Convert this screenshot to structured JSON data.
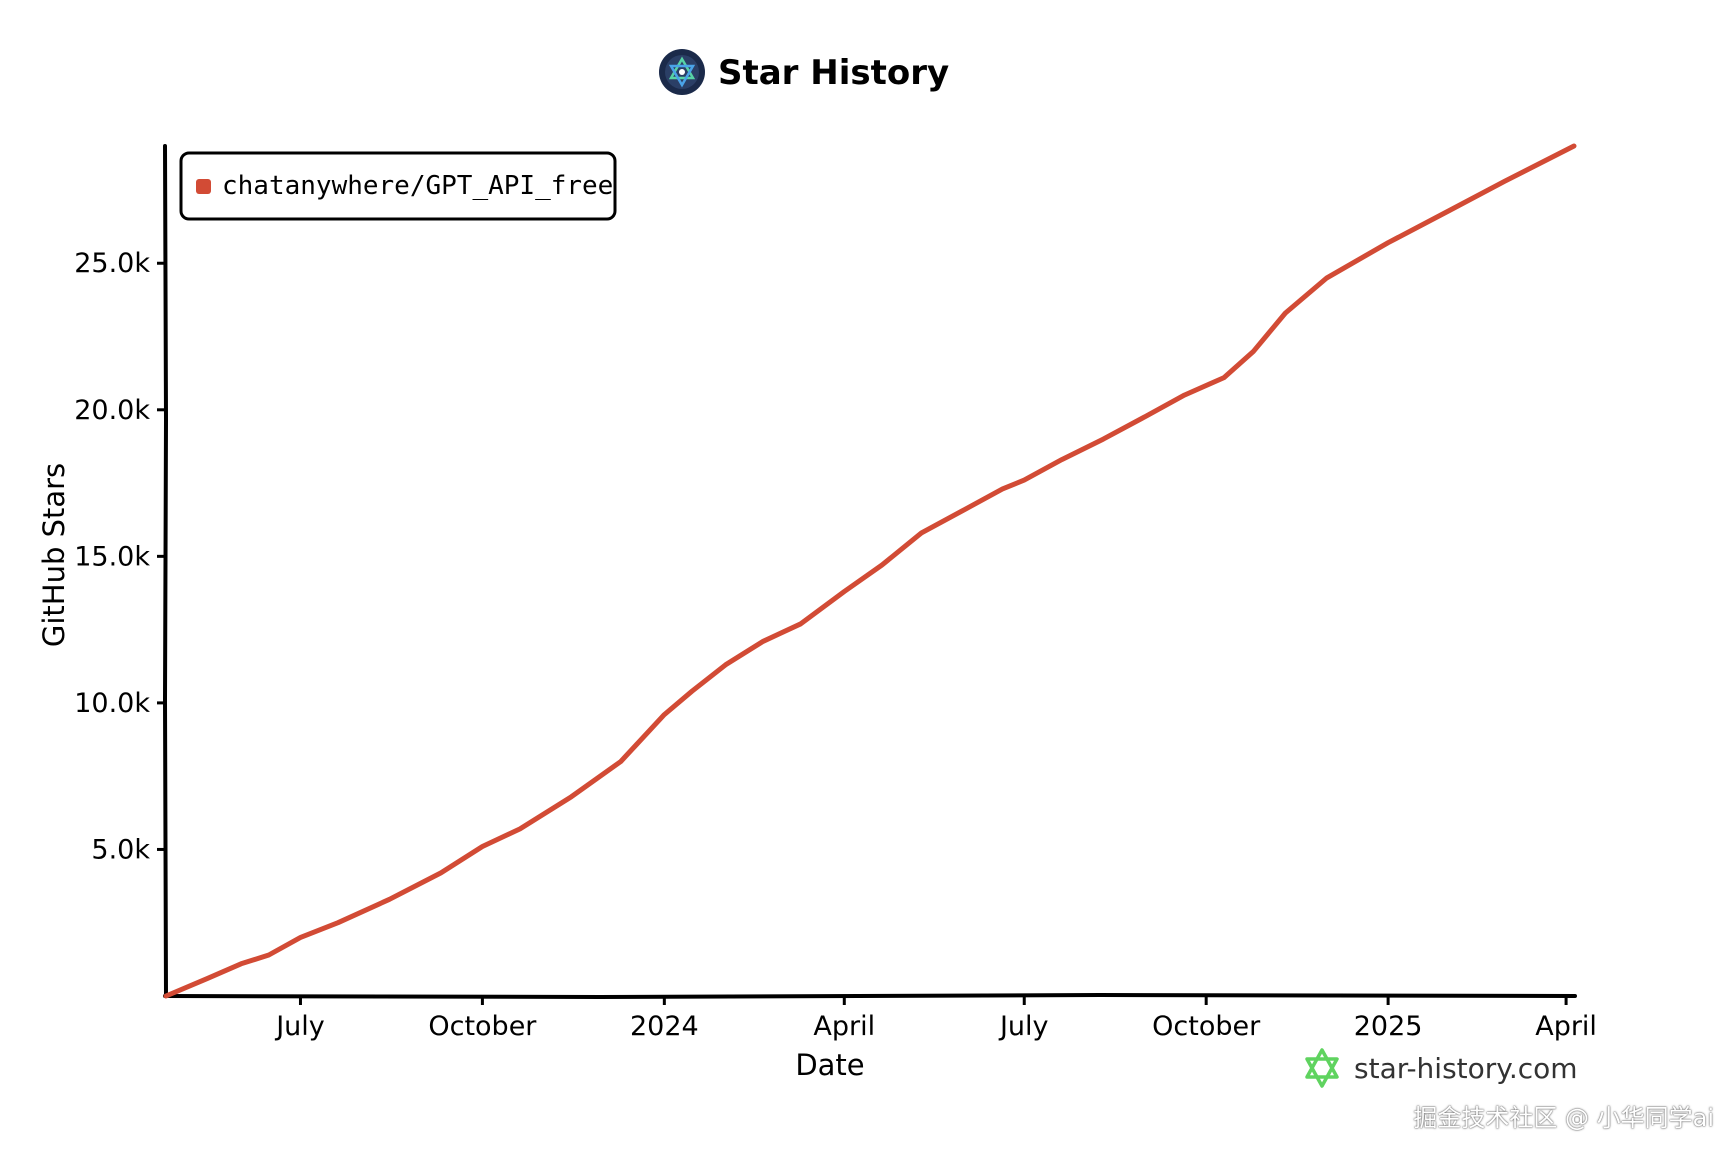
{
  "colors": {
    "series": "#d24b35",
    "axis": "#000000",
    "brand_star": "#5fd35f",
    "logo_bg": "#1b2a4a"
  },
  "icons": {
    "title_logo": "star-history-logo-icon",
    "brand_logo": "star-history-star-icon"
  },
  "chart_data": {
    "type": "line",
    "title": "Star History",
    "xlabel": "Date",
    "ylabel": "GitHub Stars",
    "x_ticks": [
      {
        "label": "July",
        "date": "2023-07-01"
      },
      {
        "label": "October",
        "date": "2023-10-01"
      },
      {
        "label": "2024",
        "date": "2024-01-01"
      },
      {
        "label": "April",
        "date": "2024-04-01"
      },
      {
        "label": "July",
        "date": "2024-07-01"
      },
      {
        "label": "October",
        "date": "2024-10-01"
      },
      {
        "label": "2025",
        "date": "2025-01-01"
      },
      {
        "label": "April",
        "date": "2025-04-01"
      }
    ],
    "y_ticks": [
      {
        "label": "5.0k",
        "value": 5000
      },
      {
        "label": "10.0k",
        "value": 10000
      },
      {
        "label": "15.0k",
        "value": 15000
      },
      {
        "label": "20.0k",
        "value": 20000
      },
      {
        "label": "25.0k",
        "value": 25000
      }
    ],
    "xlim": [
      "2023-04-24",
      "2025-04-05"
    ],
    "ylim": [
      0,
      29000
    ],
    "grid": false,
    "legend_position": "top-left",
    "series": [
      {
        "name": "chatanywhere/GPT_API_free",
        "points": [
          {
            "x": "2023-04-24",
            "y": 0
          },
          {
            "x": "2023-05-15",
            "y": 600
          },
          {
            "x": "2023-06-01",
            "y": 1100
          },
          {
            "x": "2023-06-15",
            "y": 1400
          },
          {
            "x": "2023-07-01",
            "y": 2000
          },
          {
            "x": "2023-07-20",
            "y": 2500
          },
          {
            "x": "2023-08-15",
            "y": 3300
          },
          {
            "x": "2023-09-10",
            "y": 4200
          },
          {
            "x": "2023-10-01",
            "y": 5100
          },
          {
            "x": "2023-10-20",
            "y": 5700
          },
          {
            "x": "2023-11-15",
            "y": 6800
          },
          {
            "x": "2023-12-10",
            "y": 8000
          },
          {
            "x": "2024-01-01",
            "y": 9600
          },
          {
            "x": "2024-01-15",
            "y": 10400
          },
          {
            "x": "2024-02-01",
            "y": 11300
          },
          {
            "x": "2024-02-20",
            "y": 12100
          },
          {
            "x": "2024-03-10",
            "y": 12700
          },
          {
            "x": "2024-04-01",
            "y": 13800
          },
          {
            "x": "2024-04-20",
            "y": 14700
          },
          {
            "x": "2024-05-10",
            "y": 15800
          },
          {
            "x": "2024-06-01",
            "y": 16600
          },
          {
            "x": "2024-06-20",
            "y": 17300
          },
          {
            "x": "2024-07-01",
            "y": 17600
          },
          {
            "x": "2024-07-20",
            "y": 18300
          },
          {
            "x": "2024-08-10",
            "y": 19000
          },
          {
            "x": "2024-09-01",
            "y": 19800
          },
          {
            "x": "2024-09-20",
            "y": 20500
          },
          {
            "x": "2024-10-10",
            "y": 21100
          },
          {
            "x": "2024-10-25",
            "y": 22000
          },
          {
            "x": "2024-11-10",
            "y": 23300
          },
          {
            "x": "2024-12-01",
            "y": 24500
          },
          {
            "x": "2025-01-01",
            "y": 25700
          },
          {
            "x": "2025-02-01",
            "y": 26800
          },
          {
            "x": "2025-03-01",
            "y": 27800
          },
          {
            "x": "2025-04-05",
            "y": 29000
          }
        ]
      }
    ]
  },
  "branding": {
    "site": "star-history.com"
  },
  "watermark": "掘金技术社区 @ 小华同学ai"
}
